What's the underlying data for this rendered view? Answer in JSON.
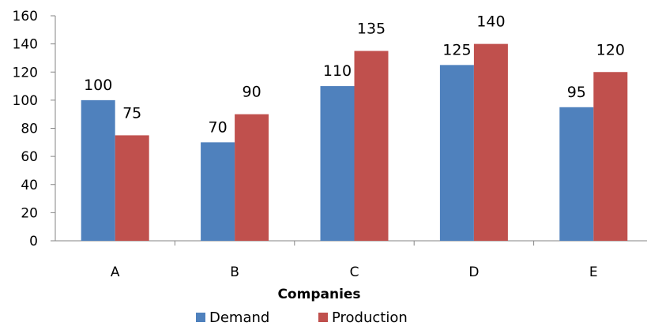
{
  "chart_data": {
    "type": "bar",
    "title": "",
    "xlabel": "Companies",
    "ylabel": "",
    "categories": [
      "A",
      "B",
      "C",
      "D",
      "E"
    ],
    "series": [
      {
        "name": "Demand",
        "values": [
          100,
          70,
          110,
          125,
          95
        ]
      },
      {
        "name": "Production",
        "values": [
          75,
          90,
          135,
          140,
          120
        ]
      }
    ],
    "ylim": [
      0,
      160
    ],
    "yticks": [
      0,
      20,
      40,
      60,
      80,
      100,
      120,
      140,
      160
    ],
    "grid": false,
    "legend_position": "bottom",
    "colors": {
      "Demand": "#4f81bd",
      "Production": "#c0504d"
    }
  }
}
